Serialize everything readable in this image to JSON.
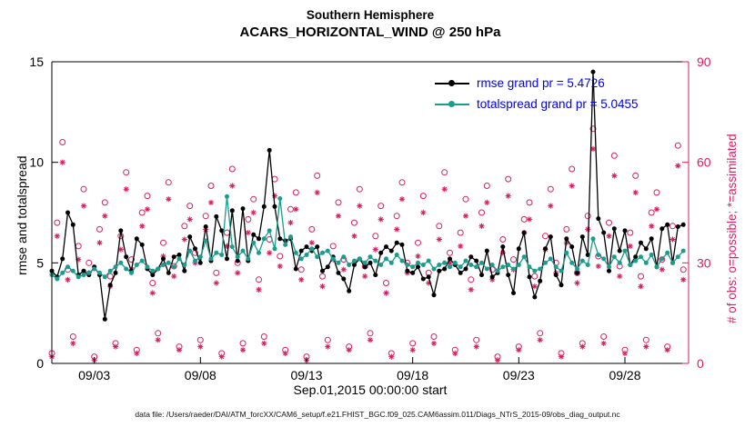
{
  "title": {
    "line1": "Southern Hemisphere",
    "line2": "ACARS_HORIZONTAL_WIND @ 250 hPa"
  },
  "legend": [
    {
      "label": "rmse grand pr = 5.4726",
      "color": "#000000"
    },
    {
      "label": "totalspread grand pr = 5.0455",
      "color": "#1a9c8e"
    }
  ],
  "footer": "data file: /Users/raeder/DAI/ATM_forcXX/CAM6_setup/f.e21.FHIST_BGC.f09_025.CAM6assim.011/Diags_NTrS_2015-09/obs_diag_output.nc",
  "colors": {
    "rmse": "#000000",
    "totalspread": "#1a9c8e",
    "obs": "#d91e63",
    "legend_text": "#0000ee"
  },
  "chart_data": {
    "type": "line",
    "title": "Southern Hemisphere - ACARS_HORIZONTAL_WIND @ 250 hPa",
    "xlabel": "Sep.01,2015 00:00:00 start",
    "ylabel_left": "rmse and totalspread",
    "ylabel_right": "# of obs: o=possible; *=assimilated",
    "ylim_left": [
      0,
      15
    ],
    "yticks_left": [
      0,
      5,
      10,
      15
    ],
    "ylim_right": [
      0,
      90
    ],
    "yticks_right": [
      0,
      30,
      60,
      90
    ],
    "grid": false,
    "legend_position": "top-right-inside",
    "rmse_grand_pr": 5.4726,
    "totalspread_grand_pr": 5.0455,
    "x_range_units": [
      0,
      120
    ],
    "points_per_day": 4,
    "xticks": [
      {
        "pos": 8,
        "label": "09/03"
      },
      {
        "pos": 28,
        "label": "09/08"
      },
      {
        "pos": 48,
        "label": "09/13"
      },
      {
        "pos": 68,
        "label": "09/18"
      },
      {
        "pos": 88,
        "label": "09/23"
      },
      {
        "pos": 108,
        "label": "09/28"
      }
    ],
    "series": [
      {
        "name": "rmse",
        "axis": "left",
        "color": "#000000",
        "marker": "filled-circle",
        "values": [
          4.6,
          4.3,
          5.2,
          7.5,
          6.9,
          4.4,
          4.6,
          4.4,
          4.8,
          4.4,
          2.2,
          3.9,
          4.5,
          6.6,
          5.3,
          4.6,
          6.2,
          5.9,
          4.7,
          4.4,
          4.7,
          5.2,
          4.5,
          5.3,
          5.4,
          4.6,
          6.3,
          5.7,
          5.0,
          6.8,
          5.1,
          7.3,
          6.6,
          5.2,
          7.6,
          5.1,
          7.7,
          5.1,
          6.4,
          6.2,
          7.8,
          10.6,
          7.8,
          6.2,
          6.1,
          6.2,
          4.7,
          5.6,
          5.8,
          5.6,
          5.8,
          4.6,
          4.8,
          5.3,
          4.5,
          4.2,
          3.6,
          4.9,
          5.2,
          4.8,
          5.0,
          4.4,
          5.5,
          5.8,
          5.6,
          6.0,
          5.9,
          4.6,
          4.5,
          4.8,
          4.2,
          4.3,
          3.4,
          4.6,
          4.7,
          5.2,
          4.9,
          4.5,
          4.7,
          5.3,
          5.1,
          4.4,
          5.6,
          4.3,
          4.5,
          5.8,
          4.4,
          3.5,
          5.7,
          6.5,
          4.3,
          3.3,
          4.1,
          5.7,
          6.3,
          4.4,
          3.9,
          6.2,
          5.8,
          4.5,
          6.3,
          5.4,
          14.5,
          7.2,
          6.5,
          4.6,
          6.7,
          5.6,
          6.6,
          4.9,
          5.3,
          6.0,
          5.7,
          6.2,
          4.8,
          6.7,
          6.9,
          5.0,
          6.8,
          6.9
        ]
      },
      {
        "name": "totalspread",
        "axis": "left",
        "color": "#1a9c8e",
        "marker": "filled-circle",
        "values": [
          4.4,
          4.2,
          4.5,
          4.8,
          4.6,
          4.3,
          4.4,
          4.5,
          4.7,
          4.5,
          4.3,
          4.6,
          4.8,
          5.0,
          4.7,
          4.5,
          4.9,
          5.1,
          4.8,
          4.6,
          4.7,
          4.9,
          5.0,
          4.8,
          5.2,
          4.9,
          5.6,
          5.1,
          5.3,
          6.1,
          5.2,
          5.5,
          5.4,
          8.3,
          5.8,
          5.3,
          5.6,
          5.2,
          6.0,
          5.5,
          6.2,
          6.6,
          5.7,
          8.2,
          5.9,
          6.3,
          5.5,
          5.2,
          5.4,
          5.7,
          5.3,
          5.5,
          5.6,
          5.2,
          5.0,
          5.3,
          4.9,
          5.1,
          5.2,
          5.0,
          5.3,
          5.1,
          4.9,
          5.2,
          5.0,
          5.4,
          5.1,
          4.9,
          4.8,
          5.0,
          4.9,
          5.1,
          4.7,
          4.9,
          5.0,
          4.8,
          5.0,
          4.8,
          5.1,
          4.9,
          4.8,
          5.0,
          4.7,
          4.9,
          4.6,
          4.8,
          4.9,
          4.7,
          4.9,
          5.3,
          4.8,
          4.6,
          4.7,
          5.0,
          5.2,
          4.8,
          4.6,
          5.5,
          5.0,
          4.7,
          5.1,
          4.9,
          6.2,
          5.4,
          5.2,
          4.8,
          5.3,
          5.0,
          5.6,
          4.9,
          5.1,
          5.3,
          5.0,
          5.4,
          4.8,
          5.2,
          5.5,
          5.0,
          5.3,
          5.6
        ]
      },
      {
        "name": "possible",
        "axis": "right",
        "color": "#d91e63",
        "marker": "open-circle",
        "values": [
          3,
          42,
          66,
          28,
          8,
          35,
          52,
          30,
          2,
          40,
          48,
          26,
          6,
          38,
          57,
          31,
          4,
          45,
          50,
          24,
          9,
          36,
          54,
          29,
          5,
          41,
          47,
          33,
          7,
          44,
          53,
          27,
          3,
          39,
          58,
          30,
          6,
          43,
          49,
          25,
          8,
          37,
          55,
          32,
          4,
          46,
          51,
          28,
          2,
          40,
          56,
          26,
          7,
          35,
          48,
          31,
          5,
          42,
          52,
          29,
          9,
          38,
          47,
          24,
          3,
          44,
          54,
          30,
          6,
          36,
          50,
          27,
          8,
          41,
          57,
          33,
          4,
          39,
          49,
          25,
          7,
          45,
          53,
          28,
          2,
          37,
          55,
          31,
          5,
          43,
          48,
          26,
          9,
          38,
          52,
          30,
          3,
          40,
          58,
          27,
          6,
          44,
          70,
          32,
          8,
          42,
          62,
          29,
          4,
          39,
          56,
          26,
          7,
          45,
          51,
          31,
          5,
          41,
          65,
          28
        ]
      },
      {
        "name": "assimilated",
        "axis": "right",
        "color": "#d91e63",
        "marker": "asterisk",
        "values": [
          2,
          38,
          60,
          25,
          6,
          31,
          47,
          27,
          1,
          36,
          44,
          23,
          5,
          34,
          52,
          28,
          3,
          41,
          46,
          21,
          7,
          32,
          49,
          26,
          4,
          37,
          43,
          30,
          5,
          40,
          48,
          24,
          2,
          35,
          53,
          27,
          4,
          39,
          45,
          22,
          6,
          33,
          50,
          29,
          3,
          42,
          46,
          25,
          1,
          36,
          51,
          23,
          5,
          31,
          44,
          28,
          4,
          38,
          47,
          26,
          7,
          34,
          43,
          21,
          2,
          40,
          49,
          27,
          4,
          32,
          45,
          24,
          6,
          37,
          52,
          30,
          3,
          35,
          44,
          22,
          5,
          41,
          48,
          25,
          1,
          33,
          50,
          28,
          4,
          39,
          43,
          23,
          7,
          34,
          47,
          27,
          2,
          36,
          53,
          24,
          5,
          40,
          64,
          29,
          6,
          38,
          56,
          26,
          3,
          35,
          51,
          23,
          5,
          41,
          46,
          28,
          4,
          37,
          59,
          25
        ]
      }
    ]
  }
}
